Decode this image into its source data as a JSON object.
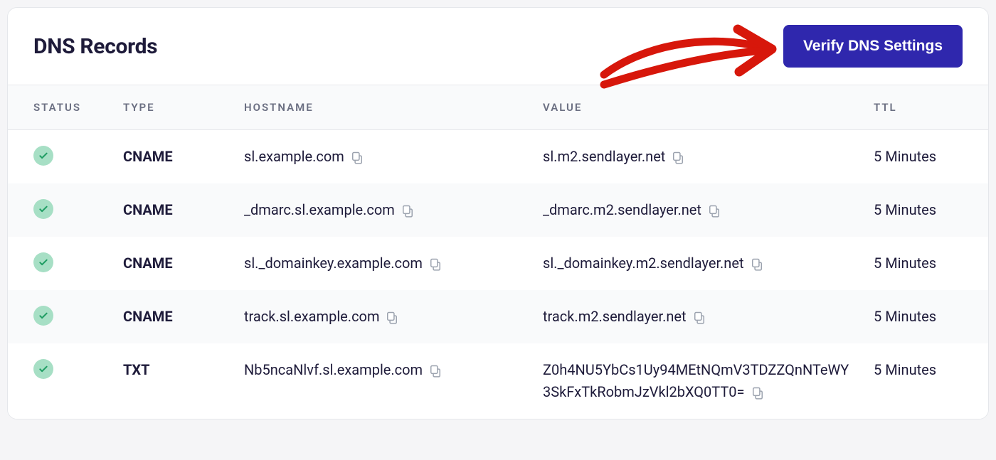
{
  "title": "DNS Records",
  "verify_button_label": "Verify DNS Settings",
  "columns": {
    "status": "STATUS",
    "type": "TYPE",
    "hostname": "HOSTNAME",
    "value": "VALUE",
    "ttl": "TTL"
  },
  "rows": [
    {
      "status": "verified",
      "type": "CNAME",
      "hostname": "sl.example.com",
      "value": "sl.m2.sendlayer.net",
      "ttl": "5 Minutes"
    },
    {
      "status": "verified",
      "type": "CNAME",
      "hostname": "_dmarc.sl.example.com",
      "value": "_dmarc.m2.sendlayer.net",
      "ttl": "5 Minutes"
    },
    {
      "status": "verified",
      "type": "CNAME",
      "hostname": "sl._domainkey.example.com",
      "value": "sl._domainkey.m2.sendlayer.net",
      "ttl": "5 Minutes"
    },
    {
      "status": "verified",
      "type": "CNAME",
      "hostname": "track.sl.example.com",
      "value": "track.m2.sendlayer.net",
      "ttl": "5 Minutes"
    },
    {
      "status": "verified",
      "type": "TXT",
      "hostname": "Nb5ncaNlvf.sl.example.com",
      "value": "Z0h4NU5YbCs1Uy94MEtNQmV3TDZZQnNTeWY3SkFxTkRobmJzVkl2bXQ0TT0=",
      "ttl": "5 Minutes"
    }
  ],
  "colors": {
    "card_bg": "#ffffff",
    "border": "#e5e7eb",
    "title_text": "#1e1b3a",
    "header_bg": "#f9fafb",
    "th_text": "#6b6f82",
    "row_alt_bg": "#f9fafb",
    "cell_text": "#1e1b3a",
    "button_bg": "#2f27ad",
    "button_text": "#ffffff",
    "check_bg": "#a7dfc5",
    "check_stroke": "#1f9d63",
    "copy_icon": "#9ca3af",
    "annotation": "#d7170b"
  },
  "typography": {
    "title_fontsize": 30,
    "th_fontsize": 15,
    "th_letter_spacing": 2,
    "cell_fontsize": 20,
    "button_fontsize": 21
  },
  "annotation": {
    "type": "hand-drawn-arrow",
    "points_to": "verify-button",
    "stroke_width": 10,
    "color": "#d7170b"
  }
}
